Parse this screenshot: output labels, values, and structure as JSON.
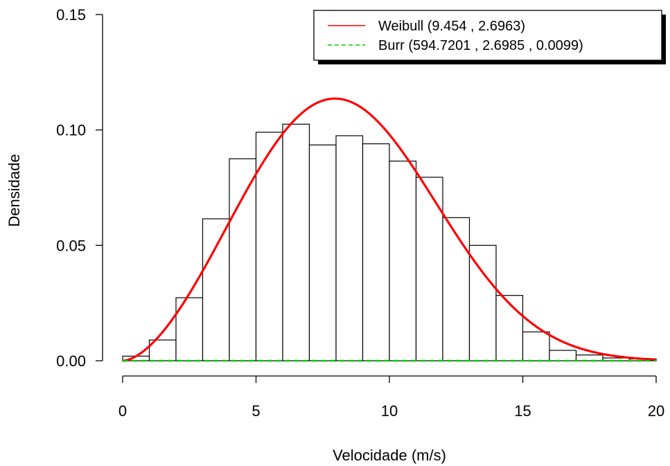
{
  "chart_data": {
    "type": "bar",
    "title": "",
    "xlabel": "Velocidade (m/s)",
    "ylabel": "Densidade",
    "xlim": [
      0,
      20
    ],
    "ylim": [
      0,
      0.15
    ],
    "xticks": [
      "0",
      "5",
      "10",
      "15",
      "20"
    ],
    "yticks": [
      "0.00",
      "0.05",
      "0.10",
      "0.15"
    ],
    "grid": false,
    "legend_position": "top-right",
    "histogram": {
      "bin_edges": [
        0,
        1,
        2,
        3,
        4,
        5,
        6,
        7,
        8,
        9,
        10,
        11,
        12,
        13,
        14,
        15,
        16,
        17,
        18,
        19,
        20
      ],
      "density": [
        0.002,
        0.009,
        0.0273,
        0.0615,
        0.0875,
        0.099,
        0.1025,
        0.0935,
        0.0975,
        0.094,
        0.0865,
        0.0795,
        0.062,
        0.05,
        0.0283,
        0.0125,
        0.0045,
        0.0025,
        0.0012,
        0.0008
      ]
    },
    "series": [
      {
        "name": "Weibull (9.454 , 2.6963)",
        "distribution": "weibull",
        "scale": 9.454,
        "shape": 2.6963,
        "color": "#ff0000",
        "dash": "solid"
      },
      {
        "name": "Burr (594.7201 , 2.6985 , 0.0099)",
        "distribution": "burr",
        "scale": 594.7201,
        "shape1": 2.6985,
        "shape2": 0.0099,
        "color": "#00cc00",
        "dash": "dashed"
      }
    ]
  }
}
